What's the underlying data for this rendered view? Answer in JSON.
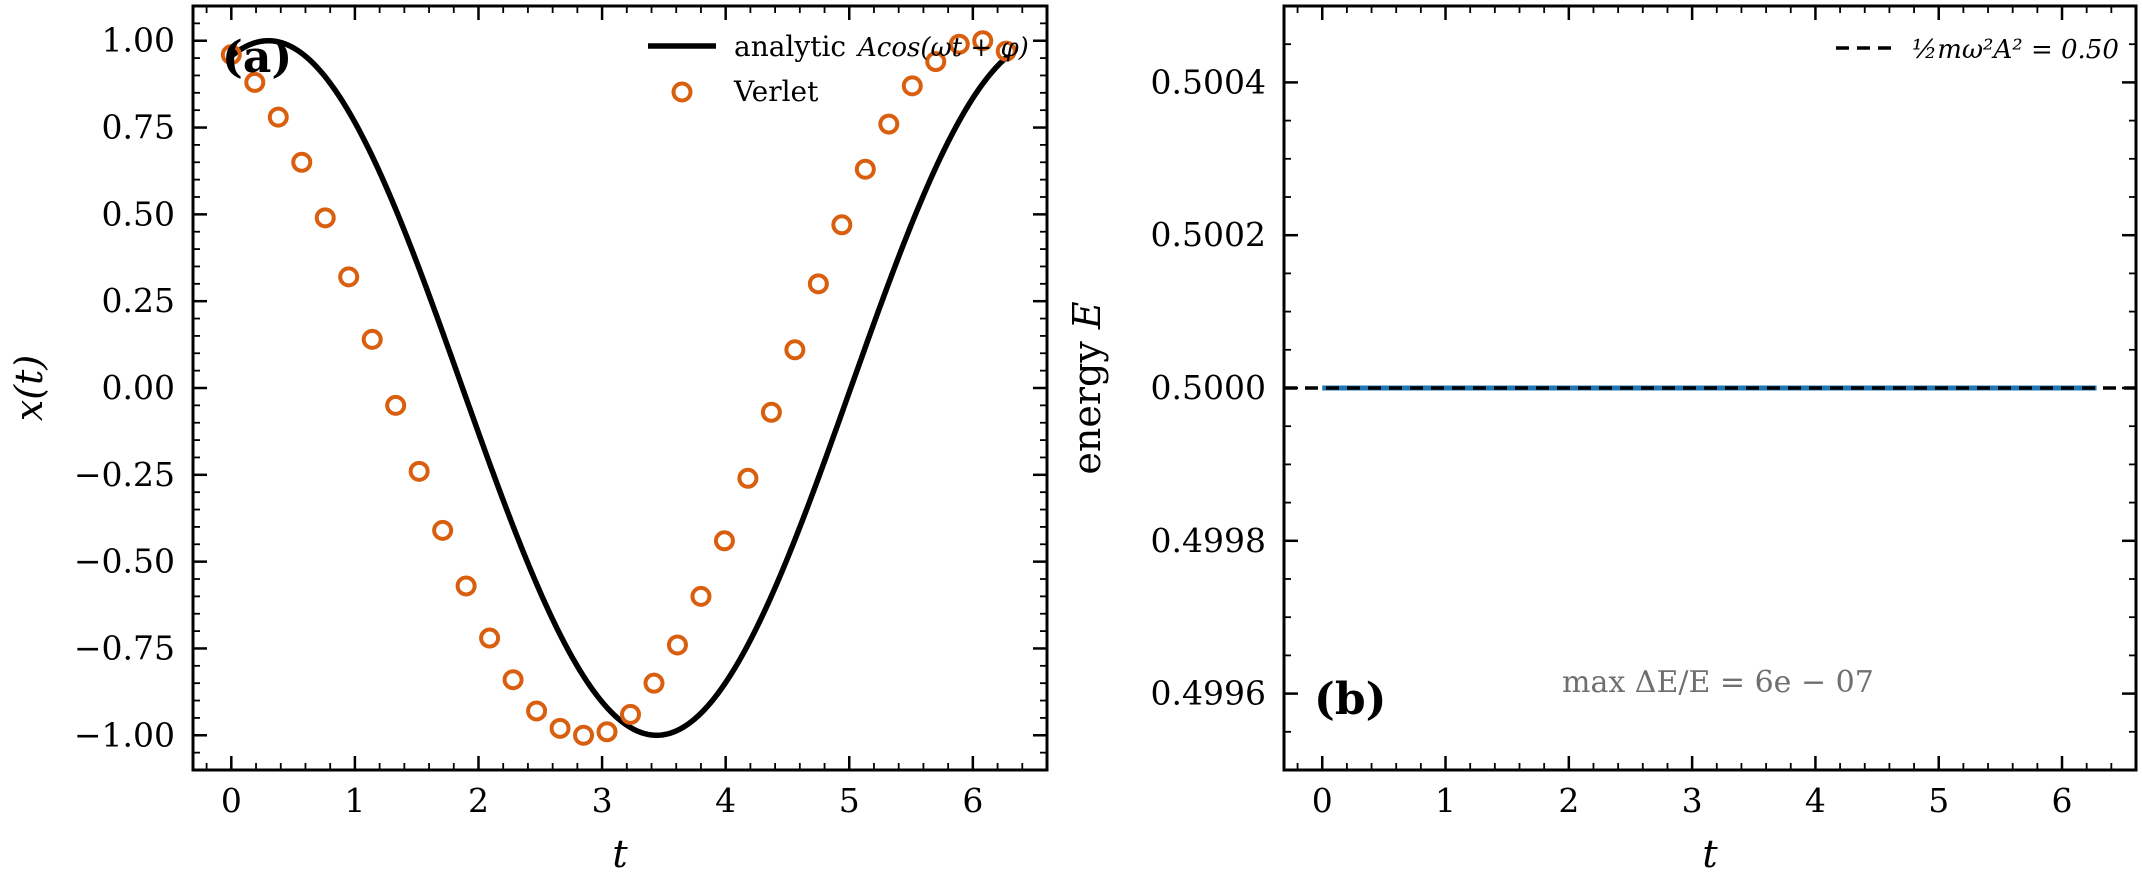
{
  "chart_data": [
    {
      "panel_label": "(a)",
      "type": "line",
      "xlabel": "t",
      "ylabel": "x(t)",
      "xlim": [
        -0.31,
        6.6
      ],
      "ylim": [
        -1.1,
        1.1
      ],
      "xticks": [
        0,
        1,
        2,
        3,
        4,
        5,
        6
      ],
      "xtick_labels": [
        "0",
        "1",
        "2",
        "3",
        "4",
        "5",
        "6"
      ],
      "yticks": [
        1.0,
        0.75,
        0.5,
        0.25,
        0.0,
        -0.25,
        -0.5,
        -0.75,
        -1.0
      ],
      "ytick_labels": [
        "1.00",
        "0.75",
        "0.50",
        "0.25",
        "0.00",
        "−0.25",
        "−0.50",
        "−0.75",
        "−1.00"
      ],
      "legend_position": "top-right",
      "series": [
        {
          "name": "analytic Acos(ωt + φ)",
          "legend_text": "analytic",
          "legend_math": "Acos(ωt + φ)",
          "style": "solid-line",
          "color": "#000000",
          "function": {
            "amplitude": 1.0,
            "omega": 1.0,
            "phi": -0.3,
            "t_range": [
              0,
              6.2832
            ]
          }
        },
        {
          "name": "Verlet",
          "style": "open-circle-markers",
          "color": "#d95f0e",
          "x": [
            0.0,
            0.19,
            0.38,
            0.57,
            0.76,
            0.95,
            1.14,
            1.33,
            1.52,
            1.71,
            1.9,
            2.09,
            2.28,
            2.47,
            2.66,
            2.85,
            3.04,
            3.23,
            3.42,
            3.61,
            3.8,
            3.99,
            4.18,
            4.37,
            4.56,
            4.75,
            4.94,
            5.13,
            5.32,
            5.51,
            5.7,
            5.89,
            6.08,
            6.27
          ],
          "y": [
            0.96,
            0.88,
            0.78,
            0.65,
            0.49,
            0.32,
            0.14,
            -0.05,
            -0.24,
            -0.41,
            -0.57,
            -0.72,
            -0.84,
            -0.93,
            -0.98,
            -1.0,
            -0.99,
            -0.94,
            -0.85,
            -0.74,
            -0.6,
            -0.44,
            -0.26,
            -0.07,
            0.11,
            0.3,
            0.47,
            0.63,
            0.76,
            0.87,
            0.94,
            0.99,
            1.0,
            0.97
          ]
        }
      ]
    },
    {
      "panel_label": "(b)",
      "type": "line",
      "xlabel": "t",
      "ylabel": "energy E",
      "ylabel_text": "energy",
      "ylabel_math": "E",
      "xlim": [
        -0.31,
        6.6
      ],
      "ylim": [
        0.4995,
        0.5005
      ],
      "xticks": [
        0,
        1,
        2,
        3,
        4,
        5,
        6
      ],
      "xtick_labels": [
        "0",
        "1",
        "2",
        "3",
        "4",
        "5",
        "6"
      ],
      "yticks": [
        0.5004,
        0.5002,
        0.5,
        0.4998,
        0.4996
      ],
      "ytick_labels": [
        "0.5004",
        "0.5002",
        "0.5000",
        "0.4998",
        "0.4996"
      ],
      "legend_position": "top-right",
      "annotation": "max ΔE/E = 6e − 07",
      "series": [
        {
          "name": "energy",
          "style": "solid-line",
          "color": "#1f77b4",
          "x": [
            0.0,
            6.28
          ],
          "y": [
            0.5,
            0.5
          ]
        },
        {
          "name": "½mω²A² = 0.50",
          "legend_math": "½mω²A² = 0.50",
          "style": "dashed-line",
          "color": "#000000",
          "y_const": 0.5
        }
      ]
    }
  ]
}
